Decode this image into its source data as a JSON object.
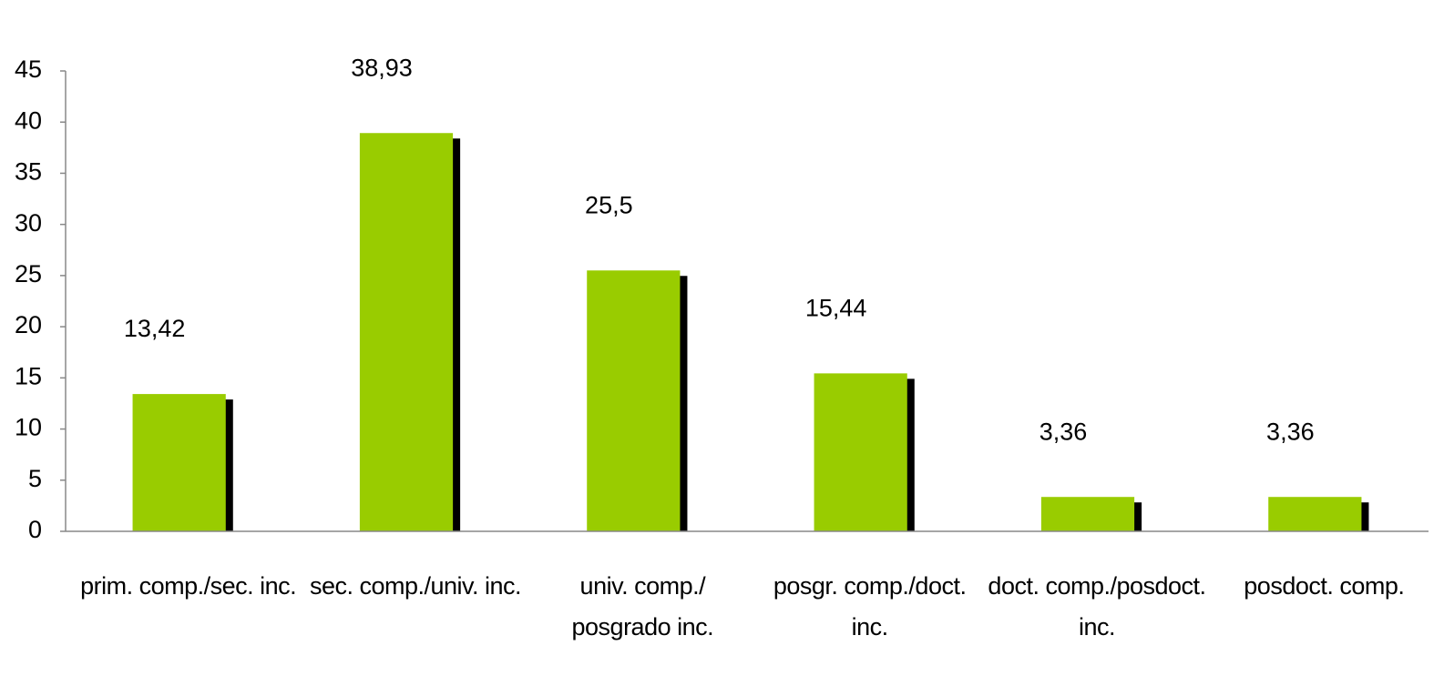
{
  "chart_data": {
    "type": "bar",
    "categories": [
      "prim. comp./sec. inc.",
      "sec. comp./univ. inc.",
      "univ. comp./ posgrado inc.",
      "posgr. comp./doct. inc.",
      "doct. comp./posdoct. inc.",
      "posdoct. comp."
    ],
    "values": [
      13.42,
      38.93,
      25.5,
      15.44,
      3.36,
      3.36
    ],
    "value_labels": [
      "13,42",
      "38,93",
      "25,5",
      "15,44",
      "3,36",
      "3,36"
    ],
    "color": "#99cc00",
    "shadow_color": "#000000",
    "ylim": [
      0,
      45
    ],
    "yticks": [
      0,
      5,
      10,
      15,
      20,
      25,
      30,
      35,
      40,
      45
    ],
    "grid": false
  }
}
